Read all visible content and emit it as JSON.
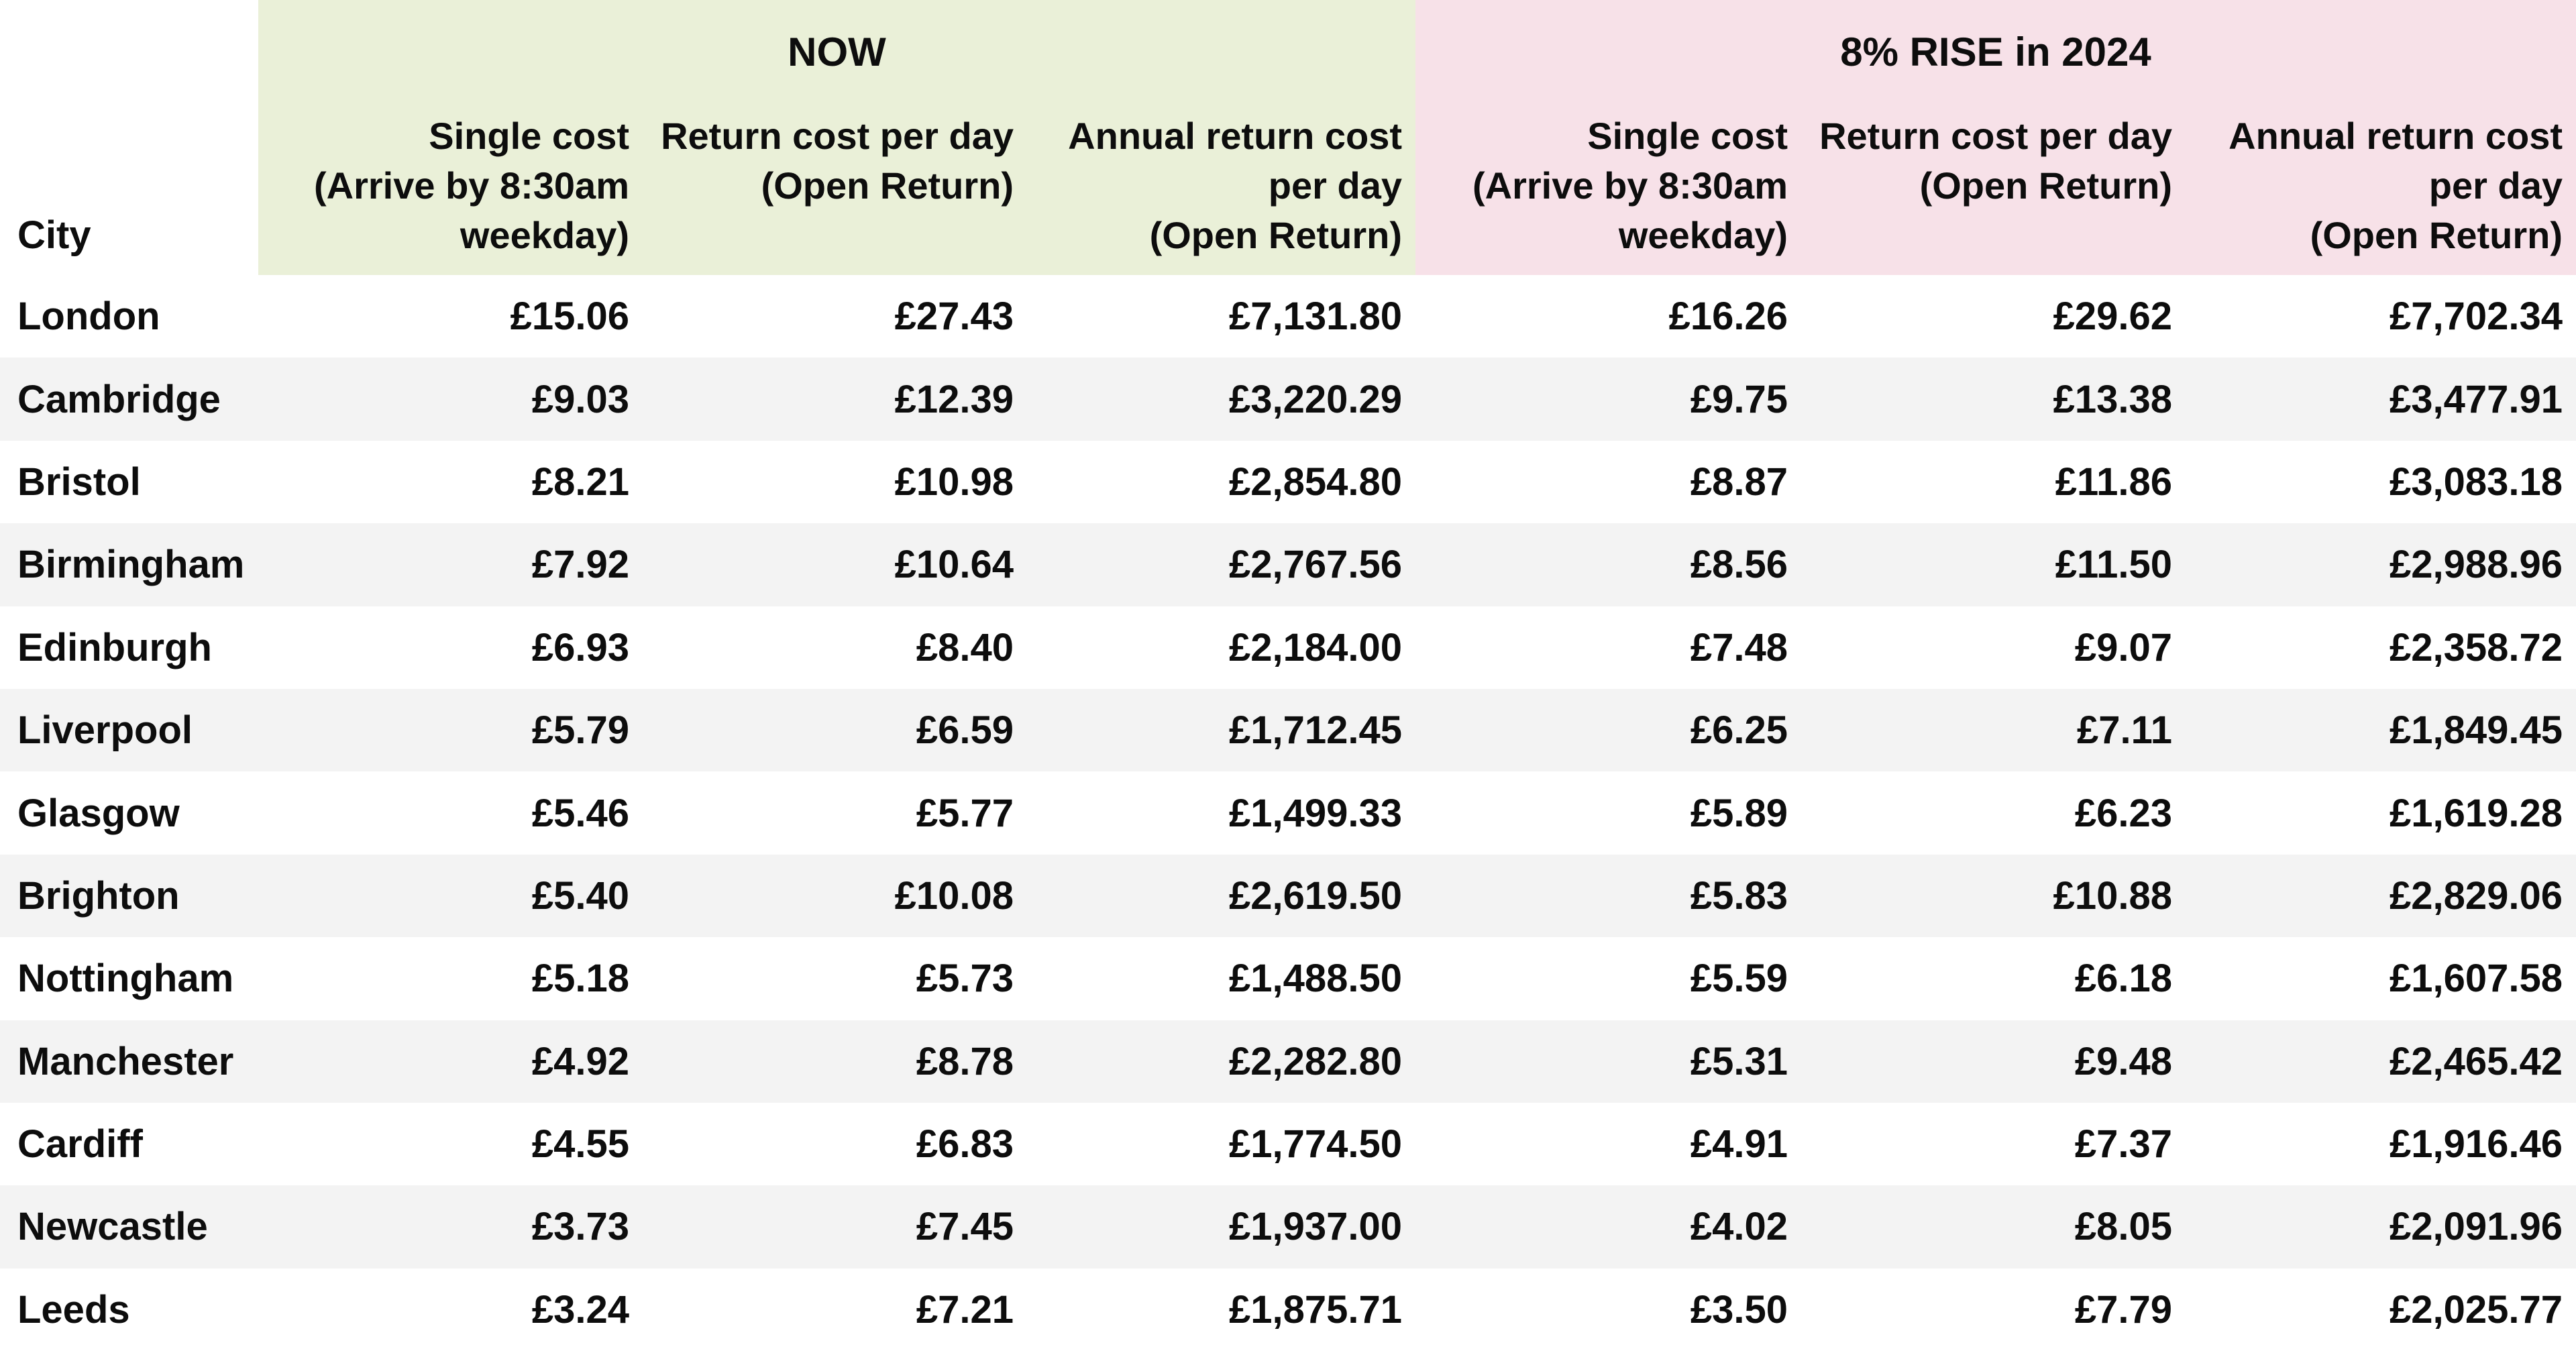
{
  "chart_data": {
    "type": "table",
    "city_column_header": "City",
    "colors": {
      "now_group_bg": "#eaf0d8",
      "rise_group_bg": "#f7e1e8",
      "row_stripe": "#f3f3f3",
      "text": "#0d0d0d",
      "page_bg": "#ffffff"
    },
    "column_groups": [
      {
        "label": "NOW",
        "background": "#eaf0d8",
        "columns": [
          "Single cost\n(Arrive by 8:30am\nweekday)",
          "Return cost per day\n(Open Return)",
          "Annual return cost\nper day\n(Open Return)"
        ]
      },
      {
        "label": "8% RISE in 2024",
        "background": "#f7e1e8",
        "columns": [
          "Single cost\n(Arrive by 8:30am\nweekday)",
          "Return cost per day\n(Open Return)",
          "Annual return cost\nper day\n(Open Return)"
        ]
      }
    ],
    "rows": [
      {
        "city": "London",
        "values": [
          "£15.06",
          "£27.43",
          "£7,131.80",
          "£16.26",
          "£29.62",
          "£7,702.34"
        ]
      },
      {
        "city": "Cambridge",
        "values": [
          "£9.03",
          "£12.39",
          "£3,220.29",
          "£9.75",
          "£13.38",
          "£3,477.91"
        ]
      },
      {
        "city": "Bristol",
        "values": [
          "£8.21",
          "£10.98",
          "£2,854.80",
          "£8.87",
          "£11.86",
          "£3,083.18"
        ]
      },
      {
        "city": "Birmingham",
        "values": [
          "£7.92",
          "£10.64",
          "£2,767.56",
          "£8.56",
          "£11.50",
          "£2,988.96"
        ]
      },
      {
        "city": "Edinburgh",
        "values": [
          "£6.93",
          "£8.40",
          "£2,184.00",
          "£7.48",
          "£9.07",
          "£2,358.72"
        ]
      },
      {
        "city": "Liverpool",
        "values": [
          "£5.79",
          "£6.59",
          "£1,712.45",
          "£6.25",
          "£7.11",
          "£1,849.45"
        ]
      },
      {
        "city": "Glasgow",
        "values": [
          "£5.46",
          "£5.77",
          "£1,499.33",
          "£5.89",
          "£6.23",
          "£1,619.28"
        ]
      },
      {
        "city": "Brighton",
        "values": [
          "£5.40",
          "£10.08",
          "£2,619.50",
          "£5.83",
          "£10.88",
          "£2,829.06"
        ]
      },
      {
        "city": "Nottingham",
        "values": [
          "£5.18",
          "£5.73",
          "£1,488.50",
          "£5.59",
          "£6.18",
          "£1,607.58"
        ]
      },
      {
        "city": "Manchester",
        "values": [
          "£4.92",
          "£8.78",
          "£2,282.80",
          "£5.31",
          "£9.48",
          "£2,465.42"
        ]
      },
      {
        "city": "Cardiff",
        "values": [
          "£4.55",
          "£6.83",
          "£1,774.50",
          "£4.91",
          "£7.37",
          "£1,916.46"
        ]
      },
      {
        "city": "Newcastle",
        "values": [
          "£3.73",
          "£7.45",
          "£1,937.00",
          "£4.02",
          "£8.05",
          "£2,091.96"
        ]
      },
      {
        "city": "Leeds",
        "values": [
          "£3.24",
          "£7.21",
          "£1,875.71",
          "£3.50",
          "£7.79",
          "£2,025.77"
        ]
      }
    ]
  }
}
